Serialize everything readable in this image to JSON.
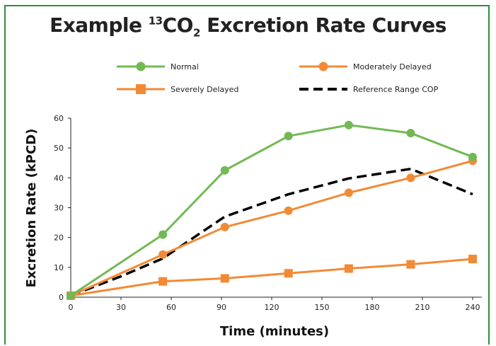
{
  "title": {
    "prefix": "Example ",
    "sup": "13",
    "co": "CO",
    "sub": "2",
    "suffix": " Excretion Rate Curves"
  },
  "colors": {
    "green": "#72b955",
    "orange": "#f28a35",
    "dashed": "#000000",
    "border": "#2f8f3a"
  },
  "chart_data": {
    "type": "line",
    "title": "Example 13CO2 Excretion Rate Curves",
    "xlabel": "Time (minutes)",
    "ylabel": "Excretion Rate (kPCD)",
    "xlim": [
      0,
      240
    ],
    "ylim": [
      0,
      60
    ],
    "xticks": [
      0,
      30,
      60,
      90,
      120,
      150,
      180,
      210,
      240
    ],
    "yticks": [
      0,
      10,
      20,
      30,
      40,
      50,
      60
    ],
    "grid": false,
    "legend_position": "top",
    "series": [
      {
        "name": "Normal",
        "color": "#72b955",
        "marker": "circle",
        "style": "solid",
        "x": [
          0,
          55,
          92,
          130,
          166,
          203,
          240
        ],
        "y": [
          0.5,
          21,
          42.5,
          54,
          57.7,
          55,
          47
        ]
      },
      {
        "name": "Moderately Delayed",
        "color": "#f28a35",
        "marker": "circle",
        "style": "solid",
        "x": [
          0,
          55,
          92,
          130,
          166,
          203,
          240
        ],
        "y": [
          0.5,
          14.3,
          23.5,
          29,
          35,
          40,
          45.7
        ]
      },
      {
        "name": "Severely Delayed",
        "color": "#f28a35",
        "marker": "square",
        "style": "solid",
        "x": [
          0,
          55,
          92,
          130,
          166,
          203,
          240
        ],
        "y": [
          0.5,
          5.3,
          6.3,
          8,
          9.6,
          11,
          12.8
        ]
      },
      {
        "name": "Reference Range COP",
        "color": "#000000",
        "marker": "none",
        "style": "dashed",
        "x": [
          0,
          30,
          55,
          92,
          130,
          166,
          203,
          240
        ],
        "y": [
          0.5,
          7,
          13,
          27,
          34.5,
          39.8,
          43,
          34.5
        ]
      }
    ]
  }
}
